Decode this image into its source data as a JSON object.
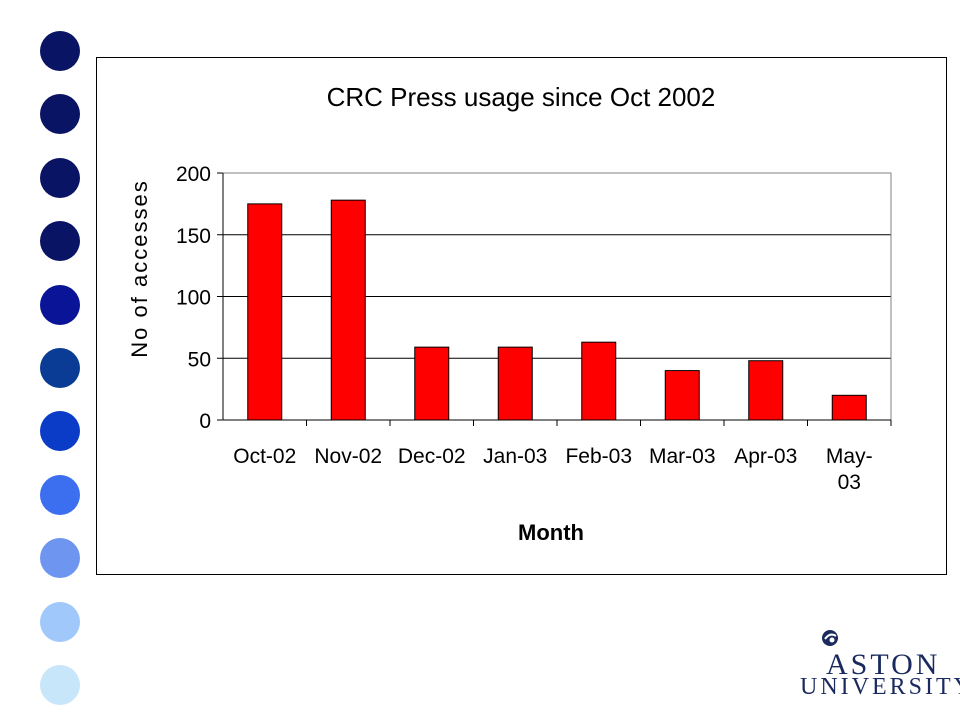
{
  "decor": {
    "dot_colors": [
      "#0a1464",
      "#0a1464",
      "#0a1464",
      "#0a1464",
      "#0a1496",
      "#0a3c96",
      "#0a3cc8",
      "#3c6ef0",
      "#6e96f0",
      "#a0c8fa",
      "#c8e6fa"
    ]
  },
  "chart_data": {
    "type": "bar",
    "title": "CRC Press usage since Oct 2002",
    "xlabel": "Month",
    "ylabel": "No of accesses",
    "categories": [
      "Oct-02",
      "Nov-02",
      "Dec-02",
      "Jan-03",
      "Feb-03",
      "Mar-03",
      "Apr-03",
      "May-03"
    ],
    "category_label_lines": [
      [
        "Oct-02"
      ],
      [
        "Nov-02"
      ],
      [
        "Dec-02"
      ],
      [
        "Jan-03"
      ],
      [
        "Feb-03"
      ],
      [
        "Mar-03"
      ],
      [
        "Apr-03"
      ],
      [
        "May-",
        "03"
      ]
    ],
    "values": [
      175,
      178,
      59,
      59,
      63,
      40,
      48,
      20
    ],
    "ylim": [
      0,
      200
    ],
    "yticks": [
      0,
      50,
      100,
      150,
      200
    ],
    "grid": true,
    "bar_color": "#ff0000",
    "bar_edge": "#000000"
  },
  "logo": {
    "line1": "ASTON",
    "line2": "UNIVERSITY",
    "color": "#1a2a5e"
  }
}
